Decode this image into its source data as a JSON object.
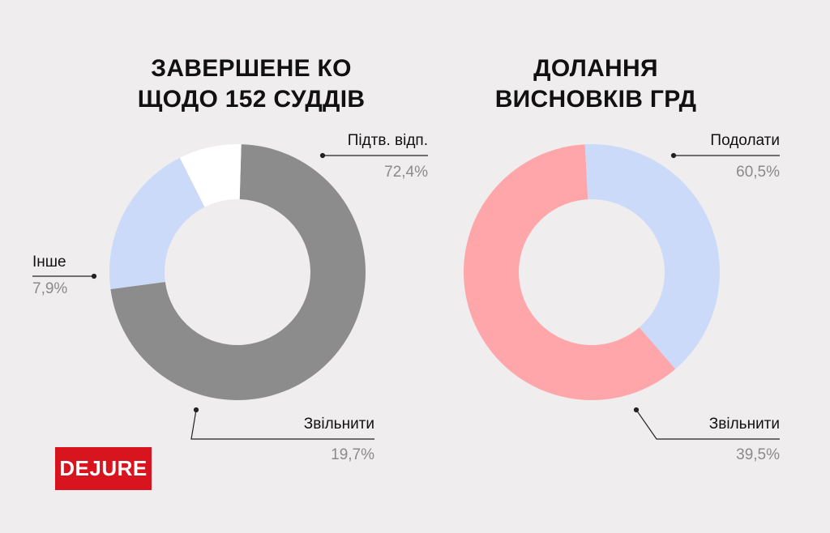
{
  "brand": {
    "logo_text": "DEJURE",
    "logo_color": "#d8141e"
  },
  "colors": {
    "background": "#efedee"
  },
  "chart_data": [
    {
      "type": "pie",
      "title_lines": [
        "ЗАВЕРШЕНЕ КО",
        "ЩОДО 152 СУДДІВ"
      ],
      "donut": true,
      "slices": [
        {
          "label": "Підтв. відп.",
          "value": 72.4,
          "value_text": "72,4%",
          "color": "#8c8c8c"
        },
        {
          "label": "Звільнити",
          "value": 19.7,
          "value_text": "19,7%",
          "color": "#ccdafa"
        },
        {
          "label": "Інше",
          "value": 7.9,
          "value_text": "7,9%",
          "color": "#ffffff"
        }
      ]
    },
    {
      "type": "pie",
      "title_lines": [
        "ДОЛАННЯ",
        "ВИСНОВКІВ ГРД"
      ],
      "donut": true,
      "slices": [
        {
          "label": "Подолати",
          "value": 60.5,
          "value_text": "60,5%",
          "color": "#ffa6aa"
        },
        {
          "label": "Звільнити",
          "value": 39.5,
          "value_text": "39,5%",
          "color": "#ccdafa"
        }
      ]
    }
  ]
}
